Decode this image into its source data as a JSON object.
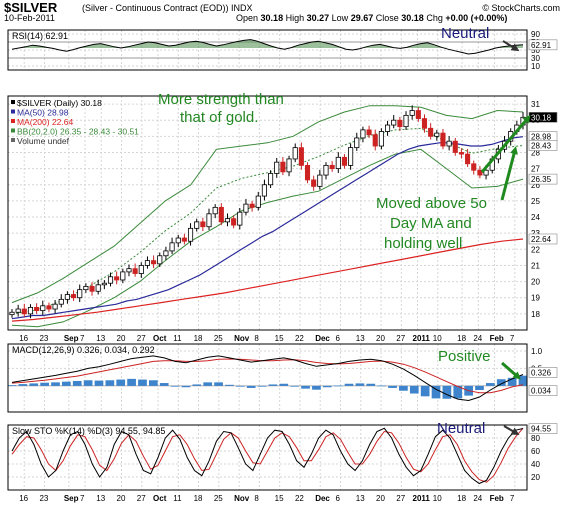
{
  "header": {
    "symbol": "$SILVER",
    "subtitle": "(Silver - Continuous Contract (EOD)) INDX",
    "date": "10-Feb-2011",
    "open_label": "Open",
    "open": "30.18",
    "high_label": "High",
    "high": "30.27",
    "low_label": "Low",
    "low": "29.67",
    "close_label": "Close",
    "close": "30.18",
    "chg_label": "Chg",
    "chg": "+0.00 (+0.00%)",
    "brand": "© StockCharts.com"
  },
  "colors": {
    "up": "#000000",
    "down": "#cc2222",
    "ma50": "#2a2a9a",
    "ma200": "#dd2222",
    "bb": "#3a8a3a",
    "rsi_fill": "#4a8a4a",
    "macd_hist": "#3d84cc",
    "annotation": "#228822",
    "annotation_blue": "#1a1a7a",
    "arrow_green": "#1e8a1e"
  },
  "chart_data": [
    {
      "type": "line",
      "panel": "rsi",
      "legend": "RSI(14) 62.91",
      "value_label": "62.91",
      "ylim": [
        0,
        100
      ],
      "ticks": [
        "90",
        "70",
        "50",
        "30",
        "10"
      ],
      "tick_values": [
        90,
        70,
        50,
        30,
        10
      ],
      "values": [
        52,
        55,
        58,
        62,
        60,
        57,
        54,
        50,
        47,
        51,
        56,
        60,
        64,
        66,
        62,
        58,
        55,
        58,
        62,
        66,
        70,
        68,
        64,
        60,
        62,
        66,
        70,
        72,
        69,
        64,
        60,
        63,
        67,
        71,
        74,
        76,
        72,
        66,
        60,
        55,
        52,
        56,
        62,
        66,
        70,
        72,
        68,
        64,
        58,
        52,
        50,
        53,
        58,
        62,
        64,
        60,
        56,
        54,
        57,
        62,
        66,
        68,
        63,
        57,
        52,
        48,
        44,
        40,
        42,
        46,
        50,
        55,
        58,
        60,
        62,
        62.91
      ]
    },
    {
      "type": "candlestick",
      "panel": "price",
      "legend": [
        {
          "name": "$SILVER (Daily) 30.18"
        },
        {
          "name": "MA(50) 28.98"
        },
        {
          "name": "MA(200) 22.64"
        },
        {
          "name": "BB(20,2.0) 26.35 - 28.43 - 30.51"
        },
        {
          "name": "Volume undef"
        }
      ],
      "ylim": [
        17,
        31.5
      ],
      "ticks": [
        "31",
        "30",
        "29",
        "28",
        "27",
        "26",
        "25",
        "24",
        "23",
        "22",
        "21",
        "20",
        "19",
        "18"
      ],
      "tick_values": [
        31,
        30,
        29,
        28,
        27,
        26,
        25,
        24,
        23,
        22,
        21,
        20,
        19,
        18
      ],
      "value_labels": [
        {
          "text": "30.18",
          "value": 30.18
        },
        {
          "text": "28.98",
          "value": 28.98
        },
        {
          "text": "28.43",
          "value": 28.43
        },
        {
          "text": "26.35",
          "value": 26.35
        },
        {
          "text": "22.64",
          "value": 22.64
        }
      ],
      "x_labels": [
        "16",
        "23",
        "Sep",
        "7",
        "13",
        "20",
        "27",
        "Oct",
        "11",
        "18",
        "25",
        "Nov",
        "8",
        "15",
        "22",
        "Dec",
        "6",
        "13",
        "20",
        "27",
        "2011",
        "10",
        "18",
        "24",
        "Feb",
        "7"
      ],
      "x_positions": [
        4,
        9,
        15,
        19,
        23,
        28,
        33,
        37,
        42,
        47,
        52,
        57,
        62,
        67,
        72,
        77,
        82,
        87,
        92,
        97,
        101,
        106,
        112,
        116,
        120,
        125
      ],
      "x_bold": [
        "Sep",
        "Oct",
        "Nov",
        "Dec",
        "2011",
        "Feb"
      ],
      "closes": [
        18.1,
        18.3,
        18.0,
        18.4,
        18.2,
        18.5,
        18.3,
        18.6,
        18.9,
        19.2,
        19.0,
        19.5,
        19.7,
        19.4,
        19.8,
        19.9,
        20.3,
        20.1,
        20.6,
        20.8,
        20.5,
        21.0,
        21.3,
        21.1,
        21.6,
        21.9,
        22.4,
        22.7,
        22.5,
        23.3,
        23.7,
        23.4,
        24.2,
        24.6,
        23.7,
        23.9,
        23.5,
        24.3,
        24.8,
        24.6,
        25.3,
        26.0,
        26.7,
        27.4,
        26.8,
        27.6,
        28.3,
        27.2,
        26.3,
        25.9,
        26.6,
        27.2,
        27.0,
        27.7,
        27.2,
        28.3,
        28.9,
        29.4,
        29.1,
        28.4,
        29.3,
        29.7,
        30.0,
        29.6,
        30.3,
        30.6,
        30.1,
        29.5,
        29.0,
        29.2,
        28.4,
        28.7,
        28.0,
        27.9,
        27.3,
        26.9,
        26.6,
        26.9,
        27.6,
        28.2,
        28.7,
        29.3,
        29.7,
        30.18
      ],
      "ma50": [
        17.7,
        17.8,
        17.9,
        17.9,
        18.0,
        18.1,
        18.2,
        18.3,
        18.4,
        18.5,
        18.6,
        18.8,
        18.9,
        19.1,
        19.3,
        19.5,
        19.8,
        20.1,
        20.4,
        20.8,
        21.2,
        21.6,
        22.0,
        22.4,
        22.8,
        23.1,
        23.5,
        23.9,
        24.3,
        24.7,
        25.1,
        25.5,
        25.9,
        26.3,
        26.7,
        27.1,
        27.5,
        27.9,
        28.2,
        28.4,
        28.5,
        28.6,
        28.6,
        28.5,
        28.4,
        28.4,
        28.5,
        28.7,
        28.9,
        28.98
      ],
      "ma200": [
        17.55,
        17.65,
        17.8,
        17.95,
        18.1,
        18.3,
        18.5,
        18.7,
        18.9,
        19.1,
        19.3,
        19.55,
        19.8,
        20.05,
        20.3,
        20.55,
        20.8,
        21.05,
        21.3,
        21.55,
        21.8,
        22.05,
        22.3,
        22.5,
        22.64
      ],
      "bb_upper": [
        18.7,
        19.3,
        20.2,
        21.2,
        22.2,
        23.6,
        25.0,
        26.0,
        28.2,
        28.4,
        28.6,
        29.0,
        29.9,
        30.5,
        30.9,
        30.9,
        30.8,
        30.3,
        30.1,
        30.6,
        30.51
      ],
      "bb_lower": [
        17.3,
        17.2,
        17.5,
        18.2,
        19.0,
        20.0,
        21.3,
        22.5,
        23.4,
        24.4,
        24.9,
        25.3,
        25.6,
        26.4,
        27.2,
        27.9,
        28.2,
        27.0,
        25.8,
        25.9,
        26.35
      ]
    },
    {
      "type": "line",
      "panel": "macd",
      "legend": "MACD(12,26,9) 0.326, 0.034, 0.292",
      "ylim": [
        -0.75,
        1.2
      ],
      "ticks": [
        "1.0",
        "0.5"
      ],
      "tick_values": [
        1.0,
        0.5
      ],
      "value_labels": [
        {
          "text": "0.326",
          "value": 0.326
        },
        {
          "text": "0.034",
          "value": 0.034
        }
      ],
      "macd": [
        0.1,
        0.15,
        0.2,
        0.25,
        0.3,
        0.36,
        0.42,
        0.5,
        0.55,
        0.62,
        0.7,
        0.78,
        0.82,
        0.86,
        0.8,
        0.7,
        0.66,
        0.74,
        0.82,
        0.86,
        0.8,
        0.74,
        0.68,
        0.72,
        0.76,
        0.8,
        0.74,
        0.64,
        0.56,
        0.6,
        0.64,
        0.7,
        0.74,
        0.76,
        0.72,
        0.62,
        0.48,
        0.3,
        0.1,
        -0.1,
        -0.25,
        -0.38,
        -0.42,
        -0.32,
        -0.12,
        0.06,
        0.2,
        0.326
      ],
      "signal": [
        0.08,
        0.1,
        0.13,
        0.16,
        0.2,
        0.24,
        0.28,
        0.34,
        0.4,
        0.46,
        0.52,
        0.58,
        0.64,
        0.7,
        0.72,
        0.72,
        0.7,
        0.7,
        0.72,
        0.76,
        0.77,
        0.76,
        0.74,
        0.72,
        0.72,
        0.74,
        0.75,
        0.72,
        0.67,
        0.64,
        0.63,
        0.64,
        0.67,
        0.7,
        0.71,
        0.68,
        0.62,
        0.52,
        0.4,
        0.26,
        0.12,
        -0.02,
        -0.14,
        -0.2,
        -0.2,
        -0.13,
        -0.03,
        0.034
      ]
    },
    {
      "type": "line",
      "panel": "sto",
      "legend": "Slow STO %K(14) %D(3) 94.55, 94.85",
      "value_label": "94.55",
      "ylim": [
        0,
        100
      ],
      "ticks": [
        "80",
        "60",
        "40",
        "20"
      ],
      "tick_values": [
        80,
        60,
        40,
        20
      ],
      "k": [
        60,
        80,
        90,
        70,
        40,
        20,
        30,
        60,
        85,
        90,
        70,
        40,
        20,
        35,
        70,
        90,
        85,
        55,
        30,
        25,
        50,
        80,
        92,
        78,
        50,
        30,
        22,
        45,
        75,
        90,
        88,
        65,
        40,
        30,
        55,
        80,
        92,
        90,
        70,
        45,
        35,
        55,
        80,
        92,
        85,
        60,
        40,
        30,
        45,
        70,
        90,
        95,
        80,
        55,
        35,
        22,
        30,
        55,
        82,
        92,
        80,
        55,
        30,
        18,
        10,
        15,
        35,
        60,
        80,
        92,
        94.55
      ],
      "d": [
        55,
        70,
        82,
        80,
        62,
        40,
        30,
        45,
        68,
        85,
        82,
        62,
        38,
        30,
        48,
        72,
        85,
        75,
        52,
        32,
        38,
        60,
        82,
        85,
        70,
        48,
        30,
        32,
        55,
        78,
        88,
        80,
        60,
        42,
        40,
        60,
        80,
        88,
        82,
        65,
        45,
        45,
        62,
        82,
        88,
        78,
        58,
        40,
        40,
        55,
        75,
        90,
        88,
        72,
        50,
        32,
        28,
        40,
        62,
        82,
        85,
        70,
        45,
        28,
        16,
        12,
        22,
        42,
        65,
        82,
        94.85
      ]
    }
  ],
  "annotations": {
    "strength_line1": "More strength than",
    "strength_line2": "that of gold.",
    "moved_line1": "Moved above 5o",
    "moved_line2": "Day MA and",
    "moved_line3": "holding well",
    "neutral_rsi": "Neutral",
    "positive": "Positive",
    "neutral_sto": "Neutral"
  }
}
